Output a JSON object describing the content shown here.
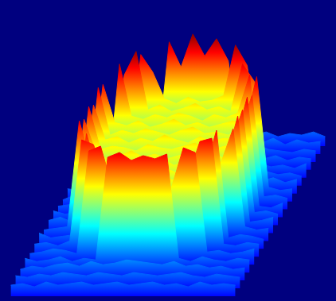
{
  "chart_data": {
    "type": "surface",
    "grid": false,
    "tick_labels": false,
    "zlim": [
      0,
      1
    ],
    "z": [
      [
        0.2,
        0.22,
        0.19,
        0.21,
        0.23,
        0.2,
        0.18,
        0.21,
        0.22,
        0.2,
        0.19,
        0.21,
        0.23,
        0.2,
        0.22,
        0.19,
        0.21,
        0.2,
        0.22,
        0.19
      ],
      [
        0.21,
        0.19,
        0.22,
        0.2,
        0.18,
        0.22,
        0.21,
        0.23,
        0.19,
        0.21,
        0.2,
        0.22,
        0.18,
        0.21,
        0.2,
        0.23,
        0.19,
        0.22,
        0.2,
        0.21
      ],
      [
        0.19,
        0.21,
        0.2,
        0.23,
        0.21,
        0.19,
        0.22,
        0.2,
        0.24,
        0.22,
        0.21,
        0.23,
        0.2,
        0.22,
        0.24,
        0.21,
        0.2,
        0.19,
        0.21,
        0.2
      ],
      [
        0.2,
        0.22,
        0.19,
        0.21,
        0.2,
        0.23,
        0.22,
        0.94,
        0.78,
        0.99,
        0.85,
        0.96,
        0.82,
        0.23,
        0.21,
        0.2,
        0.22,
        0.19,
        0.21,
        0.2
      ],
      [
        0.21,
        0.19,
        0.22,
        0.2,
        0.23,
        0.91,
        0.8,
        0.63,
        0.6,
        0.64,
        0.61,
        0.62,
        0.65,
        0.97,
        0.84,
        0.22,
        0.2,
        0.21,
        0.19,
        0.22
      ],
      [
        0.2,
        0.22,
        0.21,
        0.23,
        0.83,
        0.98,
        0.61,
        0.64,
        0.6,
        0.62,
        0.65,
        0.61,
        0.63,
        0.6,
        0.9,
        0.79,
        0.22,
        0.2,
        0.21,
        0.19
      ],
      [
        0.22,
        0.19,
        0.21,
        0.2,
        0.95,
        0.62,
        0.6,
        0.63,
        0.61,
        0.64,
        0.62,
        0.59,
        0.63,
        0.61,
        0.64,
        0.88,
        0.21,
        0.23,
        0.2,
        0.22
      ],
      [
        0.21,
        0.2,
        0.23,
        0.87,
        0.63,
        0.61,
        0.64,
        0.6,
        0.62,
        0.65,
        0.61,
        0.63,
        0.6,
        0.62,
        0.64,
        0.61,
        0.92,
        0.22,
        0.2,
        0.21
      ],
      [
        0.19,
        0.22,
        0.2,
        0.9,
        0.6,
        0.63,
        0.61,
        0.64,
        0.62,
        0.6,
        0.63,
        0.65,
        0.61,
        0.62,
        0.6,
        0.64,
        0.85,
        0.21,
        0.22,
        0.2
      ],
      [
        0.2,
        0.21,
        0.22,
        0.84,
        0.62,
        0.64,
        0.6,
        0.63,
        0.61,
        0.65,
        0.62,
        0.6,
        0.64,
        0.61,
        0.63,
        0.62,
        0.89,
        0.2,
        0.19,
        0.22
      ],
      [
        0.22,
        0.2,
        0.21,
        0.88,
        0.61,
        0.63,
        0.62,
        0.6,
        0.64,
        0.62,
        0.61,
        0.63,
        0.65,
        0.6,
        0.62,
        0.64,
        0.86,
        0.21,
        0.22,
        0.2
      ],
      [
        0.21,
        0.23,
        0.2,
        0.85,
        0.64,
        0.6,
        0.62,
        0.65,
        0.61,
        0.63,
        0.6,
        0.62,
        0.64,
        0.61,
        0.63,
        0.6,
        0.87,
        0.2,
        0.21,
        0.23
      ],
      [
        0.2,
        0.21,
        0.22,
        0.89,
        0.62,
        0.64,
        0.61,
        0.63,
        0.6,
        0.62,
        0.65,
        0.61,
        0.63,
        0.62,
        0.6,
        0.63,
        0.84,
        0.22,
        0.2,
        0.21
      ],
      [
        0.23,
        0.2,
        0.21,
        0.22,
        0.86,
        0.61,
        0.63,
        0.6,
        0.64,
        0.62,
        0.61,
        0.63,
        0.6,
        0.65,
        0.62,
        0.88,
        0.2,
        0.22,
        0.21,
        0.19
      ],
      [
        0.21,
        0.22,
        0.2,
        0.23,
        0.87,
        0.84,
        0.63,
        0.61,
        0.64,
        0.6,
        0.62,
        0.63,
        0.61,
        0.64,
        0.86,
        0.88,
        0.21,
        0.2,
        0.22,
        0.21
      ],
      [
        0.2,
        0.21,
        0.23,
        0.22,
        0.2,
        0.85,
        0.88,
        0.62,
        0.6,
        0.64,
        0.61,
        0.63,
        0.62,
        0.87,
        0.84,
        0.21,
        0.22,
        0.2,
        0.21,
        0.23
      ],
      [
        0.22,
        0.2,
        0.21,
        0.23,
        0.2,
        0.22,
        0.21,
        0.86,
        0.89,
        0.84,
        0.87,
        0.85,
        0.88,
        0.22,
        0.2,
        0.23,
        0.21,
        0.2,
        0.22,
        0.21
      ],
      [
        0.2,
        0.22,
        0.21,
        0.23,
        0.24,
        0.22,
        0.25,
        0.23,
        0.24,
        0.26,
        0.25,
        0.24,
        0.23,
        0.25,
        0.22,
        0.23,
        0.21,
        0.22,
        0.2,
        0.21
      ],
      [
        0.21,
        0.2,
        0.22,
        0.21,
        0.23,
        0.22,
        0.21,
        0.23,
        0.22,
        0.21,
        0.23,
        0.22,
        0.21,
        0.22,
        0.23,
        0.21,
        0.2,
        0.22,
        0.21,
        0.2
      ],
      [
        0.2,
        0.21,
        0.19,
        0.22,
        0.2,
        0.21,
        0.22,
        0.2,
        0.21,
        0.22,
        0.2,
        0.21,
        0.22,
        0.2,
        0.21,
        0.19,
        0.22,
        0.2,
        0.21,
        0.2
      ]
    ]
  }
}
